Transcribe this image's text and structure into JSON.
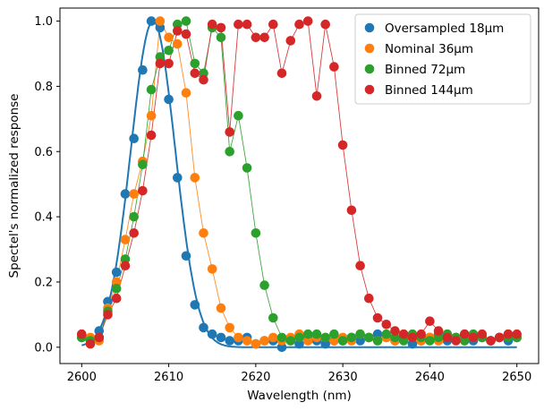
{
  "chart_data": {
    "type": "scatter",
    "xlabel": "Wavelength (nm)",
    "ylabel": "Spectel's normalized response",
    "xlim": [
      2597.5,
      2652.5
    ],
    "ylim": [
      -0.05,
      1.04
    ],
    "xticks": [
      2600,
      2610,
      2620,
      2630,
      2640,
      2650
    ],
    "yticks": [
      0.0,
      0.2,
      0.4,
      0.6,
      0.8,
      1.0
    ],
    "xtick_labels": [
      "2600",
      "2610",
      "2620",
      "2630",
      "2640",
      "2650"
    ],
    "ytick_labels": [
      "0.0",
      "0.2",
      "0.4",
      "0.6",
      "0.8",
      "1.0"
    ],
    "grid": false,
    "legend_position": "top-right",
    "fit_curve": {
      "color": "#1f77b4",
      "center": 2608.2,
      "sigma": 2.55,
      "amplitude": 1.0
    },
    "series": [
      {
        "name": "Oversampled 18µm",
        "color": "#1f77b4",
        "connect": false,
        "points": [
          [
            2600,
            0.03
          ],
          [
            2601,
            0.02
          ],
          [
            2602,
            0.05
          ],
          [
            2603,
            0.14
          ],
          [
            2604,
            0.23
          ],
          [
            2605,
            0.47
          ],
          [
            2606,
            0.64
          ],
          [
            2607,
            0.85
          ],
          [
            2608,
            1.0
          ],
          [
            2609,
            0.98
          ],
          [
            2610,
            0.76
          ],
          [
            2611,
            0.52
          ],
          [
            2612,
            0.28
          ],
          [
            2613,
            0.13
          ],
          [
            2614,
            0.06
          ],
          [
            2615,
            0.04
          ],
          [
            2616,
            0.03
          ],
          [
            2617,
            0.02
          ],
          [
            2618,
            0.02
          ],
          [
            2619,
            0.03
          ],
          [
            2620,
            0.01
          ],
          [
            2621,
            0.02
          ],
          [
            2622,
            0.02
          ],
          [
            2623,
            0.0
          ],
          [
            2624,
            0.02
          ],
          [
            2625,
            0.01
          ],
          [
            2626,
            0.03
          ],
          [
            2627,
            0.02
          ],
          [
            2628,
            0.01
          ],
          [
            2629,
            0.02
          ],
          [
            2630,
            0.02
          ],
          [
            2631,
            0.03
          ],
          [
            2632,
            0.02
          ],
          [
            2633,
            0.03
          ],
          [
            2634,
            0.04
          ],
          [
            2635,
            0.03
          ],
          [
            2636,
            0.02
          ],
          [
            2637,
            0.03
          ],
          [
            2638,
            0.01
          ],
          [
            2639,
            0.02
          ],
          [
            2640,
            0.03
          ],
          [
            2641,
            0.04
          ],
          [
            2642,
            0.02
          ],
          [
            2643,
            0.03
          ],
          [
            2644,
            0.04
          ],
          [
            2645,
            0.02
          ],
          [
            2646,
            0.03
          ],
          [
            2647,
            0.02
          ],
          [
            2648,
            0.03
          ],
          [
            2649,
            0.02
          ],
          [
            2650,
            0.03
          ]
        ]
      },
      {
        "name": "Nominal 36µm",
        "color": "#ff7f0e",
        "connect": true,
        "points": [
          [
            2600,
            0.04
          ],
          [
            2601,
            0.03
          ],
          [
            2602,
            0.02
          ],
          [
            2603,
            0.12
          ],
          [
            2604,
            0.2
          ],
          [
            2605,
            0.33
          ],
          [
            2606,
            0.47
          ],
          [
            2607,
            0.57
          ],
          [
            2608,
            0.71
          ],
          [
            2609,
            1.0
          ],
          [
            2610,
            0.95
          ],
          [
            2611,
            0.93
          ],
          [
            2612,
            0.78
          ],
          [
            2613,
            0.52
          ],
          [
            2614,
            0.35
          ],
          [
            2615,
            0.24
          ],
          [
            2616,
            0.12
          ],
          [
            2617,
            0.06
          ],
          [
            2618,
            0.03
          ],
          [
            2619,
            0.02
          ],
          [
            2620,
            0.01
          ],
          [
            2621,
            0.02
          ],
          [
            2622,
            0.03
          ],
          [
            2623,
            0.02
          ],
          [
            2624,
            0.03
          ],
          [
            2625,
            0.04
          ],
          [
            2626,
            0.02
          ],
          [
            2627,
            0.03
          ],
          [
            2628,
            0.03
          ],
          [
            2629,
            0.02
          ],
          [
            2630,
            0.03
          ],
          [
            2631,
            0.02
          ],
          [
            2632,
            0.04
          ],
          [
            2633,
            0.03
          ],
          [
            2634,
            0.02
          ],
          [
            2635,
            0.03
          ],
          [
            2636,
            0.02
          ],
          [
            2637,
            0.04
          ],
          [
            2638,
            0.03
          ],
          [
            2639,
            0.02
          ],
          [
            2640,
            0.03
          ],
          [
            2641,
            0.02
          ],
          [
            2642,
            0.04
          ],
          [
            2643,
            0.03
          ],
          [
            2644,
            0.02
          ],
          [
            2645,
            0.03
          ],
          [
            2646,
            0.03
          ],
          [
            2647,
            0.02
          ],
          [
            2648,
            0.03
          ],
          [
            2649,
            0.04
          ],
          [
            2650,
            0.03
          ]
        ]
      },
      {
        "name": "Binned 72µm",
        "color": "#2ca02c",
        "connect": true,
        "points": [
          [
            2600,
            0.03
          ],
          [
            2601,
            0.02
          ],
          [
            2602,
            0.03
          ],
          [
            2603,
            0.11
          ],
          [
            2604,
            0.18
          ],
          [
            2605,
            0.27
          ],
          [
            2606,
            0.4
          ],
          [
            2607,
            0.56
          ],
          [
            2608,
            0.79
          ],
          [
            2609,
            0.89
          ],
          [
            2610,
            0.91
          ],
          [
            2611,
            0.99
          ],
          [
            2612,
            1.0
          ],
          [
            2613,
            0.87
          ],
          [
            2614,
            0.84
          ],
          [
            2615,
            0.98
          ],
          [
            2616,
            0.95
          ],
          [
            2617,
            0.6
          ],
          [
            2618,
            0.71
          ],
          [
            2619,
            0.55
          ],
          [
            2620,
            0.35
          ],
          [
            2621,
            0.19
          ],
          [
            2622,
            0.09
          ],
          [
            2623,
            0.03
          ],
          [
            2624,
            0.02
          ],
          [
            2625,
            0.03
          ],
          [
            2626,
            0.04
          ],
          [
            2627,
            0.04
          ],
          [
            2628,
            0.03
          ],
          [
            2629,
            0.04
          ],
          [
            2630,
            0.02
          ],
          [
            2631,
            0.03
          ],
          [
            2632,
            0.04
          ],
          [
            2633,
            0.03
          ],
          [
            2634,
            0.02
          ],
          [
            2635,
            0.04
          ],
          [
            2636,
            0.03
          ],
          [
            2637,
            0.02
          ],
          [
            2638,
            0.04
          ],
          [
            2639,
            0.03
          ],
          [
            2640,
            0.02
          ],
          [
            2641,
            0.03
          ],
          [
            2642,
            0.04
          ],
          [
            2643,
            0.03
          ],
          [
            2644,
            0.02
          ],
          [
            2645,
            0.04
          ],
          [
            2646,
            0.03
          ],
          [
            2647,
            0.02
          ],
          [
            2648,
            0.03
          ],
          [
            2649,
            0.03
          ],
          [
            2650,
            0.03
          ]
        ]
      },
      {
        "name": "Binned 144µm",
        "color": "#d62728",
        "connect": true,
        "points": [
          [
            2600,
            0.04
          ],
          [
            2601,
            0.01
          ],
          [
            2602,
            0.03
          ],
          [
            2603,
            0.1
          ],
          [
            2604,
            0.15
          ],
          [
            2605,
            0.25
          ],
          [
            2606,
            0.35
          ],
          [
            2607,
            0.48
          ],
          [
            2608,
            0.65
          ],
          [
            2609,
            0.87
          ],
          [
            2610,
            0.87
          ],
          [
            2611,
            0.97
          ],
          [
            2612,
            0.96
          ],
          [
            2613,
            0.84
          ],
          [
            2614,
            0.82
          ],
          [
            2615,
            0.99
          ],
          [
            2616,
            0.98
          ],
          [
            2617,
            0.66
          ],
          [
            2618,
            0.99
          ],
          [
            2619,
            0.99
          ],
          [
            2620,
            0.95
          ],
          [
            2621,
            0.95
          ],
          [
            2622,
            0.99
          ],
          [
            2623,
            0.84
          ],
          [
            2624,
            0.94
          ],
          [
            2625,
            0.99
          ],
          [
            2626,
            1.0
          ],
          [
            2627,
            0.77
          ],
          [
            2628,
            0.99
          ],
          [
            2629,
            0.86
          ],
          [
            2630,
            0.62
          ],
          [
            2631,
            0.42
          ],
          [
            2632,
            0.25
          ],
          [
            2633,
            0.15
          ],
          [
            2634,
            0.09
          ],
          [
            2635,
            0.07
          ],
          [
            2636,
            0.05
          ],
          [
            2637,
            0.04
          ],
          [
            2638,
            0.03
          ],
          [
            2639,
            0.04
          ],
          [
            2640,
            0.08
          ],
          [
            2641,
            0.05
          ],
          [
            2642,
            0.03
          ],
          [
            2643,
            0.02
          ],
          [
            2644,
            0.04
          ],
          [
            2645,
            0.03
          ],
          [
            2646,
            0.04
          ],
          [
            2647,
            0.02
          ],
          [
            2648,
            0.03
          ],
          [
            2649,
            0.04
          ],
          [
            2650,
            0.04
          ]
        ]
      }
    ]
  }
}
